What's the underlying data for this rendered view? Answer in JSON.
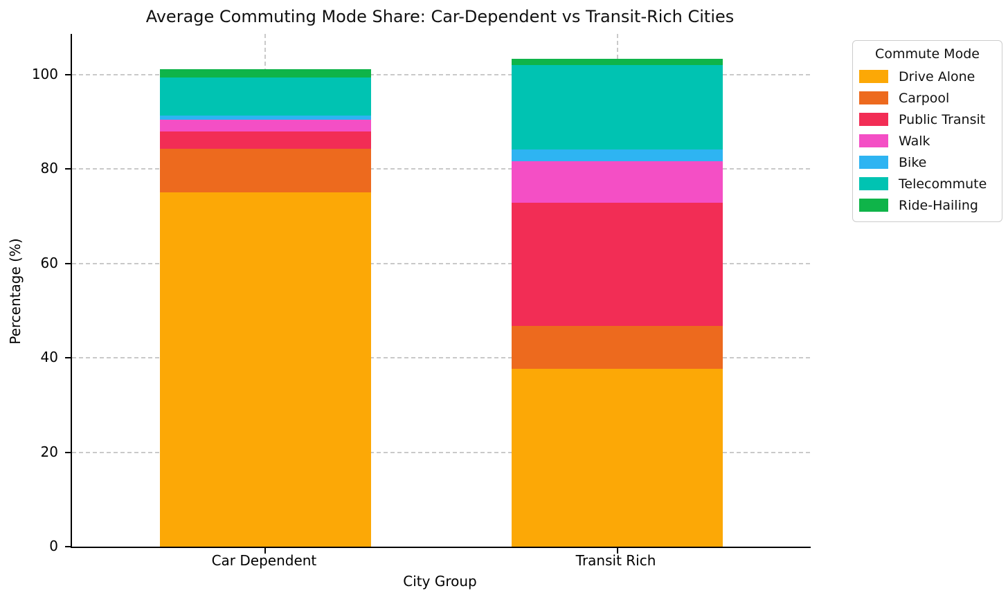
{
  "chart_data": {
    "type": "bar",
    "stacked": true,
    "title": "Average Commuting Mode Share: Car-Dependent vs Transit-Rich Cities",
    "xlabel": "City Group",
    "ylabel": "Percentage (%)",
    "categories": [
      "Car Dependent",
      "Transit Rich"
    ],
    "series": [
      {
        "name": "Drive Alone",
        "color": "#FCA806",
        "values": [
          75.1,
          37.7
        ]
      },
      {
        "name": "Carpool",
        "color": "#ED6A1E",
        "values": [
          9.2,
          9.0
        ]
      },
      {
        "name": "Public Transit",
        "color": "#F22D55",
        "values": [
          3.6,
          26.1
        ]
      },
      {
        "name": "Walk",
        "color": "#F44FC5",
        "values": [
          2.6,
          8.9
        ]
      },
      {
        "name": "Bike",
        "color": "#2EB4F2",
        "values": [
          0.8,
          2.5
        ]
      },
      {
        "name": "Telecommute",
        "color": "#00C3B2",
        "values": [
          8.1,
          17.8
        ]
      },
      {
        "name": "Ride-Hailing",
        "color": "#0FB449",
        "values": [
          1.7,
          1.4
        ]
      }
    ],
    "y_ticks": [
      0,
      20,
      40,
      60,
      80,
      100
    ],
    "ylim": [
      0,
      108.6
    ],
    "legend_title": "Commute Mode",
    "legend_position": "outside-upper-right",
    "grid": {
      "show": true,
      "style": "dashed",
      "axes": "both"
    }
  }
}
